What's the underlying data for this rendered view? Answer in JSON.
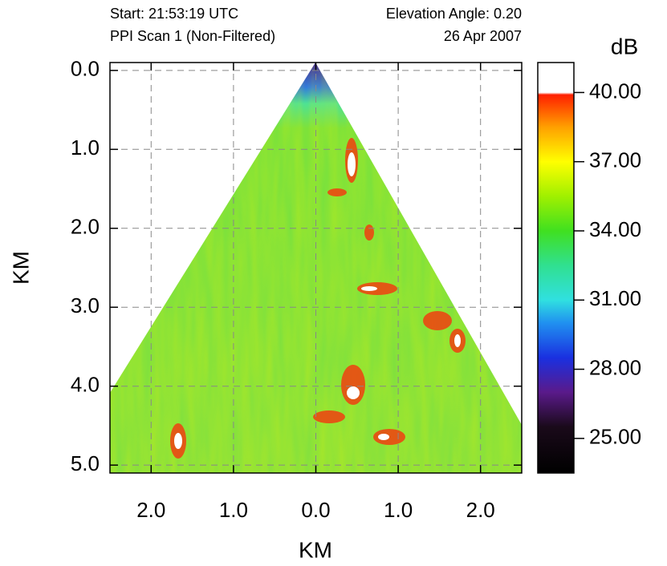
{
  "chart_data": {
    "type": "ppi",
    "header": [
      "Start: 21:53:19 UTC",
      "Elevation Angle: 0.20",
      "PPI Scan 1 (Non-Filtered)",
      "26 Apr 2007"
    ],
    "xlabel": "KM",
    "ylabel": "KM",
    "xlim": [
      -2.5,
      2.5
    ],
    "xticks": [
      {
        "value": -2,
        "label": "2.0"
      },
      {
        "value": -1,
        "label": "1.0"
      },
      {
        "value": 0,
        "label": "0.0"
      },
      {
        "value": 1,
        "label": "1.0"
      },
      {
        "value": 2,
        "label": "2.0"
      }
    ],
    "ylim": [
      -0.1,
      5.1
    ],
    "y_inverted": true,
    "yticks": [
      {
        "value": 0,
        "label": "0.0"
      },
      {
        "value": 1,
        "label": "1.0"
      },
      {
        "value": 2,
        "label": "2.0"
      },
      {
        "value": 3,
        "label": "3.0"
      },
      {
        "value": 4,
        "label": "4.0"
      },
      {
        "value": 5,
        "label": "5.0"
      }
    ],
    "grid": true,
    "colorbar": {
      "label": "dB",
      "lim": [
        23.5,
        41.3
      ],
      "ticks": [
        {
          "value": 25,
          "label": "25.00"
        },
        {
          "value": 28,
          "label": "28.00"
        },
        {
          "value": 31,
          "label": "31.00"
        },
        {
          "value": 34,
          "label": "34.00"
        },
        {
          "value": 37,
          "label": "37.00"
        },
        {
          "value": 40,
          "label": "40.00"
        }
      ],
      "stops": [
        {
          "value": 23.5,
          "color": "#000000"
        },
        {
          "value": 25.5,
          "color": "#1a0a1a"
        },
        {
          "value": 27,
          "color": "#5a1a8a"
        },
        {
          "value": 28.5,
          "color": "#1a30e0"
        },
        {
          "value": 30,
          "color": "#2090f0"
        },
        {
          "value": 31,
          "color": "#30e0e0"
        },
        {
          "value": 32.5,
          "color": "#30e090"
        },
        {
          "value": 34,
          "color": "#40e020"
        },
        {
          "value": 35.5,
          "color": "#a0f000"
        },
        {
          "value": 37,
          "color": "#ffff00"
        },
        {
          "value": 38.5,
          "color": "#ffa000"
        },
        {
          "value": 39.9,
          "color": "#ff2000"
        },
        {
          "value": 40,
          "color": "#ffffff"
        },
        {
          "value": 41.3,
          "color": "#ffffff"
        }
      ]
    }
  }
}
